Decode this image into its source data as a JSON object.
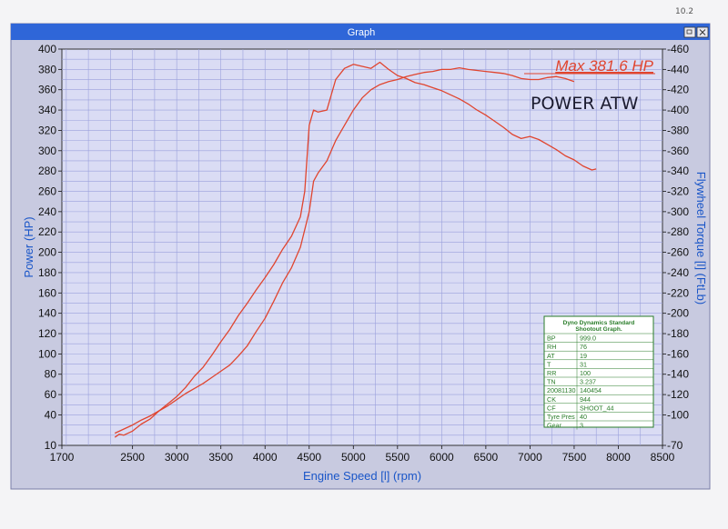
{
  "window": {
    "title": "Graph",
    "restore_icon": "restore-icon",
    "close_icon": "close-icon",
    "corner_scribble": "10.2"
  },
  "colors": {
    "titlebar": "#2f66d8",
    "plot_bg": "#dadcf4",
    "grid": "#9aa0dc",
    "curve": "#e0452f",
    "axis_text": "#111111",
    "ylabel": "#1a56c8"
  },
  "chart_data": {
    "type": "line",
    "title": "",
    "xlabel": "Engine Speed [l] (rpm)",
    "ylabel_left": "Power (HP)",
    "ylabel_right": "Flywheel Torque [l] (FtLb)",
    "xlim": [
      1700,
      8500
    ],
    "ylim_left": [
      10,
      400
    ],
    "ylim_right": [
      70,
      460
    ],
    "x_ticks": [
      1700,
      2500,
      3000,
      3500,
      4000,
      4500,
      5000,
      5500,
      6000,
      6500,
      7000,
      7500,
      8000,
      8500
    ],
    "y_ticks_left": [
      10,
      40,
      60,
      80,
      100,
      120,
      140,
      160,
      180,
      200,
      220,
      240,
      260,
      280,
      300,
      320,
      340,
      360,
      380,
      400
    ],
    "y_ticks_right": [
      70,
      100,
      120,
      140,
      160,
      180,
      200,
      220,
      240,
      260,
      280,
      300,
      320,
      340,
      360,
      380,
      400,
      420,
      440,
      460
    ],
    "grid": true,
    "series": [
      {
        "name": "",
        "axis": "left",
        "points": [
          [
            2300,
            22
          ],
          [
            2400,
            26
          ],
          [
            2500,
            30
          ],
          [
            2600,
            35
          ],
          [
            2700,
            39
          ],
          [
            2800,
            44
          ],
          [
            2900,
            49
          ],
          [
            3000,
            55
          ],
          [
            3100,
            61
          ],
          [
            3200,
            66
          ],
          [
            3300,
            71
          ],
          [
            3400,
            77
          ],
          [
            3500,
            83
          ],
          [
            3600,
            89
          ],
          [
            3700,
            98
          ],
          [
            3800,
            108
          ],
          [
            3900,
            122
          ],
          [
            4000,
            135
          ],
          [
            4100,
            152
          ],
          [
            4200,
            170
          ],
          [
            4300,
            185
          ],
          [
            4400,
            205
          ],
          [
            4500,
            240
          ],
          [
            4550,
            270
          ],
          [
            4600,
            278
          ],
          [
            4700,
            290
          ],
          [
            4800,
            310
          ],
          [
            4900,
            325
          ],
          [
            5000,
            340
          ],
          [
            5100,
            352
          ],
          [
            5200,
            360
          ],
          [
            5300,
            365
          ],
          [
            5400,
            368
          ],
          [
            5500,
            370
          ],
          [
            5600,
            373
          ],
          [
            5700,
            375
          ],
          [
            5800,
            377
          ],
          [
            5900,
            378
          ],
          [
            6000,
            380
          ],
          [
            6100,
            380
          ],
          [
            6200,
            381.6
          ],
          [
            6300,
            380
          ],
          [
            6400,
            379
          ],
          [
            6500,
            378
          ],
          [
            6600,
            377
          ],
          [
            6700,
            376
          ],
          [
            6800,
            374
          ],
          [
            6900,
            371
          ],
          [
            7000,
            370
          ],
          [
            7100,
            370
          ],
          [
            7200,
            372
          ],
          [
            7300,
            373
          ],
          [
            7400,
            371
          ],
          [
            7500,
            368
          ]
        ]
      },
      {
        "name": "",
        "axis": "right",
        "points": [
          [
            2300,
            78
          ],
          [
            2350,
            81
          ],
          [
            2400,
            80
          ],
          [
            2500,
            84
          ],
          [
            2600,
            91
          ],
          [
            2700,
            96
          ],
          [
            2800,
            104
          ],
          [
            2900,
            111
          ],
          [
            3000,
            118
          ],
          [
            3100,
            127
          ],
          [
            3200,
            138
          ],
          [
            3300,
            147
          ],
          [
            3400,
            159
          ],
          [
            3500,
            172
          ],
          [
            3600,
            184
          ],
          [
            3700,
            198
          ],
          [
            3800,
            210
          ],
          [
            3900,
            223
          ],
          [
            4000,
            235
          ],
          [
            4100,
            248
          ],
          [
            4200,
            263
          ],
          [
            4300,
            276
          ],
          [
            4400,
            295
          ],
          [
            4450,
            320
          ],
          [
            4500,
            385
          ],
          [
            4550,
            400
          ],
          [
            4600,
            398
          ],
          [
            4700,
            400
          ],
          [
            4800,
            430
          ],
          [
            4900,
            441
          ],
          [
            5000,
            445
          ],
          [
            5100,
            443
          ],
          [
            5200,
            441
          ],
          [
            5300,
            447
          ],
          [
            5400,
            440
          ],
          [
            5500,
            434
          ],
          [
            5600,
            431
          ],
          [
            5700,
            427
          ],
          [
            5800,
            425
          ],
          [
            5900,
            422
          ],
          [
            6000,
            419
          ],
          [
            6100,
            415
          ],
          [
            6200,
            411
          ],
          [
            6300,
            406
          ],
          [
            6400,
            400
          ],
          [
            6500,
            395
          ],
          [
            6600,
            389
          ],
          [
            6700,
            383
          ],
          [
            6800,
            376
          ],
          [
            6900,
            372
          ],
          [
            7000,
            374
          ],
          [
            7100,
            371
          ],
          [
            7200,
            366
          ],
          [
            7300,
            361
          ],
          [
            7400,
            355
          ],
          [
            7500,
            351
          ],
          [
            7600,
            345
          ],
          [
            7700,
            341
          ],
          [
            7750,
            342
          ]
        ]
      }
    ],
    "annotations": [
      {
        "text": "Max 381.6 HP",
        "anchor": "top-right",
        "style": "underlined red"
      },
      {
        "text": "POWER ATW",
        "anchor": "top-right",
        "style": "handwritten"
      }
    ],
    "info_table": {
      "title_line1": "Dyno Dynamics Standard",
      "title_line2": "Shootout Graph.",
      "placement": "bottom-right",
      "rows": [
        [
          "BP",
          "999.0"
        ],
        [
          "RH",
          "76"
        ],
        [
          "AT",
          "19"
        ],
        [
          "T",
          "31"
        ],
        [
          "RR",
          "100"
        ],
        [
          "TN",
          "3.237"
        ],
        [
          "20081130",
          "140454"
        ],
        [
          "CK",
          "944"
        ],
        [
          "CF",
          "SHOOT_44"
        ],
        [
          "Tyre Pres",
          "40"
        ],
        [
          "Gear",
          "3"
        ]
      ]
    }
  }
}
